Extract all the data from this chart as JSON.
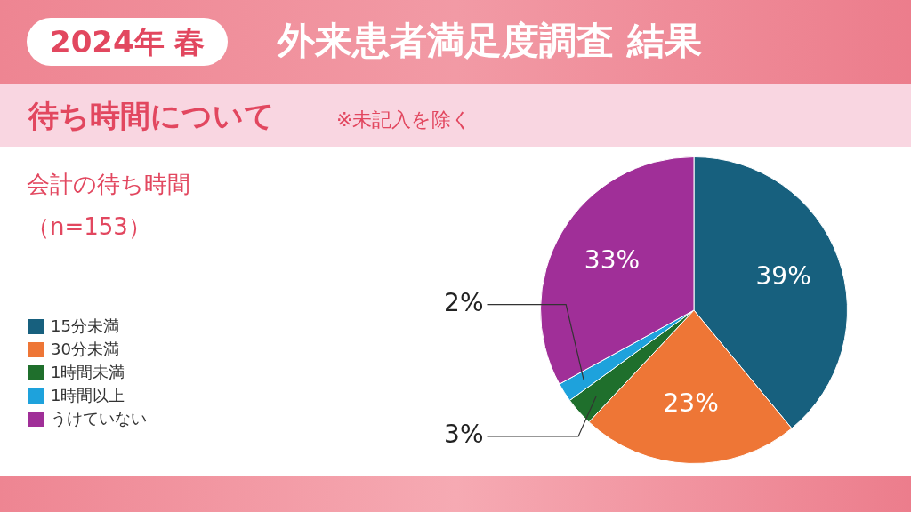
{
  "chart_data": {
    "type": "pie",
    "title": "外来患者満足度調査 結果",
    "subtitle": "待ち時間について",
    "annotations": [
      "2024年 春",
      "※未記入を除く",
      "会計の待ち時間",
      "（n=153）"
    ],
    "categories": [
      "15分未満",
      "30分未満",
      "1時間未満",
      "1時間以上",
      "うけていない"
    ],
    "values": [
      39,
      23,
      3,
      2,
      33
    ],
    "colors": [
      "#17607e",
      "#ee7636",
      "#1f6f2c",
      "#1ea2dc",
      "#a02f98"
    ],
    "value_labels": [
      "39%",
      "23%",
      "3%",
      "2%",
      "33%"
    ],
    "legend": "left"
  }
}
